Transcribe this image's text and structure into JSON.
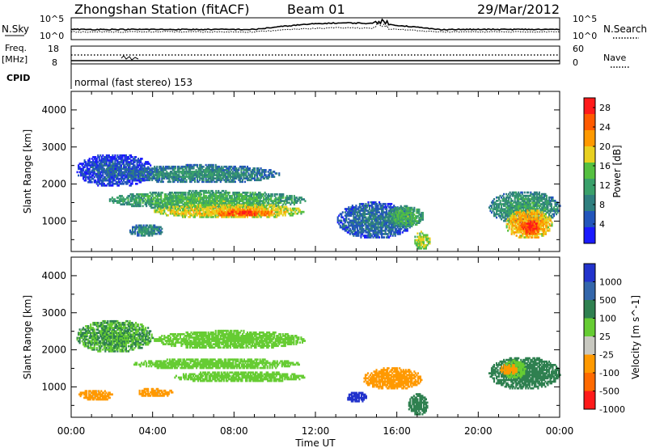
{
  "header": {
    "station": "Zhongshan Station (fitACF)",
    "beam": "Beam 01",
    "date": "29/Mar/2012"
  },
  "noise_panel": {
    "left_label": "N.Sky",
    "right_label": "N.Search",
    "left_ticks": [
      "10^5",
      "10^0"
    ],
    "right_ticks": [
      "10^5",
      "10^0"
    ]
  },
  "freq_panel": {
    "left_label_top": "Freq.",
    "left_label_unit": "[MHz]",
    "left_ticks": [
      "18",
      "8"
    ],
    "right_label": "Nave",
    "right_ticks": [
      "60",
      "0"
    ]
  },
  "cpid_panel": {
    "label": "CPID",
    "program": "normal (fast stereo) 153"
  },
  "colors": {
    "power": [
      "#1a1aff",
      "#2255bb",
      "#2f7f7f",
      "#3aa06a",
      "#55c040",
      "#e8d020",
      "#ff9900",
      "#ff5a00",
      "#ff1a1a"
    ],
    "velocity": [
      "#2233cc",
      "#3366aa",
      "#2f8050",
      "#66cc33",
      "#c8c8c0",
      "#ff9900",
      "#ff6a00",
      "#ff1a1a"
    ]
  },
  "chart_data": [
    {
      "type": "heatmap",
      "name": "power",
      "ylabel": "Slant Range [km]",
      "ylim": [
        180,
        4500
      ],
      "yticks": [
        "1000",
        "2000",
        "3000",
        "4000"
      ],
      "colorbar_label": "Power [dB]",
      "colorbar_ticks": [
        "4",
        "8",
        "12",
        "16",
        "20",
        "24",
        "28"
      ],
      "colorbar_range": [
        0,
        30
      ],
      "blobs": [
        {
          "x0": 0.2,
          "x1": 4.0,
          "y0": 1900,
          "y1": 2800,
          "v": 6
        },
        {
          "x0": 2.5,
          "x1": 10.2,
          "y0": 2000,
          "y1": 2500,
          "v": 10
        },
        {
          "x0": 1.8,
          "x1": 11.5,
          "y0": 1300,
          "y1": 1800,
          "v": 14
        },
        {
          "x0": 4.0,
          "x1": 11.5,
          "y0": 1050,
          "y1": 1450,
          "v": 20
        },
        {
          "x0": 7.0,
          "x1": 10.0,
          "y0": 1100,
          "y1": 1300,
          "v": 26
        },
        {
          "x0": 2.8,
          "x1": 4.5,
          "y0": 550,
          "y1": 900,
          "v": 10
        },
        {
          "x0": 13.0,
          "x1": 16.8,
          "y0": 500,
          "y1": 1500,
          "v": 8
        },
        {
          "x0": 15.5,
          "x1": 17.3,
          "y0": 800,
          "y1": 1400,
          "v": 14
        },
        {
          "x0": 16.8,
          "x1": 17.6,
          "y0": 200,
          "y1": 700,
          "v": 18
        },
        {
          "x0": 20.5,
          "x1": 24.0,
          "y0": 900,
          "y1": 1800,
          "v": 12
        },
        {
          "x0": 21.3,
          "x1": 23.6,
          "y0": 500,
          "y1": 1300,
          "v": 22
        },
        {
          "x0": 22.0,
          "x1": 23.0,
          "y0": 600,
          "y1": 1000,
          "v": 28
        }
      ]
    },
    {
      "type": "heatmap",
      "name": "velocity",
      "ylabel": "Slant Range [km]",
      "ylim": [
        180,
        4500
      ],
      "yticks": [
        "1000",
        "2000",
        "3000",
        "4000"
      ],
      "colorbar_label": "Velocity [m s^-1]",
      "colorbar_ticks": [
        "1000",
        "500",
        "100",
        "25",
        "-25",
        "-100",
        "-500",
        "-1000"
      ],
      "blobs": [
        {
          "x0": 0.2,
          "x1": 4.0,
          "y0": 1900,
          "y1": 2800,
          "v": 25
        },
        {
          "x0": 4.0,
          "x1": 11.5,
          "y0": 2000,
          "y1": 2500,
          "v": 0
        },
        {
          "x0": 3.0,
          "x1": 11.2,
          "y0": 1450,
          "y1": 1750,
          "v": 0
        },
        {
          "x0": 5.0,
          "x1": 11.5,
          "y0": 1100,
          "y1": 1400,
          "v": 0
        },
        {
          "x0": 0.3,
          "x1": 2.0,
          "y0": 600,
          "y1": 900,
          "v": -150
        },
        {
          "x0": 3.2,
          "x1": 5.0,
          "y0": 700,
          "y1": 950,
          "v": -150
        },
        {
          "x0": 13.5,
          "x1": 14.5,
          "y0": 550,
          "y1": 850,
          "v": 800
        },
        {
          "x0": 14.3,
          "x1": 17.2,
          "y0": 900,
          "y1": 1500,
          "v": -350
        },
        {
          "x0": 16.5,
          "x1": 17.5,
          "y0": 200,
          "y1": 800,
          "v": 60
        },
        {
          "x0": 20.5,
          "x1": 24.0,
          "y0": 900,
          "y1": 1800,
          "v": 60
        },
        {
          "x0": 21.2,
          "x1": 22.3,
          "y0": 1200,
          "y1": 1700,
          "v": 0
        },
        {
          "x0": 21.0,
          "x1": 21.9,
          "y0": 1300,
          "y1": 1600,
          "v": -300
        }
      ]
    }
  ],
  "xaxis": {
    "xlabel": "Time UT",
    "xlim": [
      0,
      24
    ],
    "ticks": [
      "00:00",
      "04:00",
      "08:00",
      "12:00",
      "16:00",
      "20:00",
      "00:00"
    ]
  }
}
